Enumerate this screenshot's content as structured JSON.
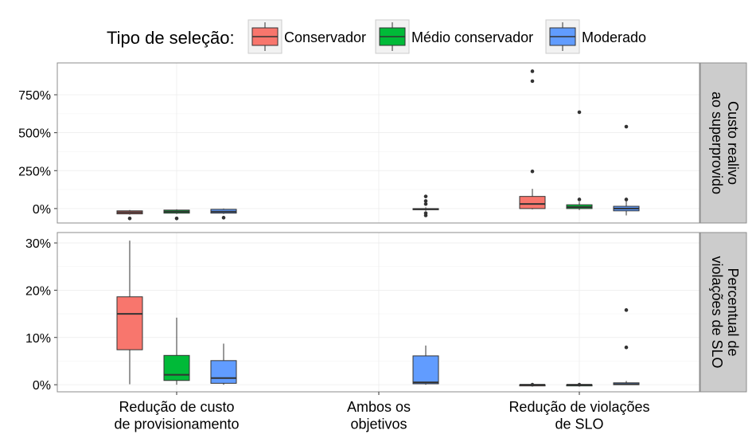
{
  "chart_data": {
    "type": "box",
    "legend": {
      "title": "Tipo de seleção:",
      "position": "top",
      "entries": [
        {
          "label": "Conservador",
          "color": "#F8766D"
        },
        {
          "label": "Médio conservador",
          "color": "#00BA38"
        },
        {
          "label": "Moderado",
          "color": "#619CFF"
        }
      ]
    },
    "categories": [
      [
        "Redução de custo",
        "de provisionamento"
      ],
      [
        "Ambos os",
        "objetivos"
      ],
      [
        "Redução de violações",
        "de SLO"
      ]
    ],
    "grid": true,
    "panels": [
      {
        "strip": [
          "Custo realivo",
          "ao superprovido"
        ],
        "ylim": [
          -95,
          960
        ],
        "yticks": [
          0,
          250,
          500,
          750
        ],
        "ytick_labels": [
          "0%",
          "250%",
          "500%",
          "750%"
        ],
        "boxes": [
          {
            "category": 0,
            "series": 0,
            "q1": -35,
            "median": -25,
            "q3": -15,
            "whisker_low": -40,
            "whisker_high": -10,
            "outliers": [
              -65
            ]
          },
          {
            "category": 0,
            "series": 1,
            "q1": -30,
            "median": -20,
            "q3": -10,
            "whisker_low": -35,
            "whisker_high": -5,
            "outliers": [
              -65
            ]
          },
          {
            "category": 0,
            "series": 2,
            "q1": -30,
            "median": -20,
            "q3": -5,
            "whisker_low": -35,
            "whisker_high": 0,
            "outliers": [
              -60
            ]
          },
          {
            "category": 1,
            "series": 2,
            "q1": -8,
            "median": -3,
            "q3": 0,
            "whisker_low": -15,
            "whisker_high": 8,
            "outliers": [
              80,
              50,
              30,
              -30,
              -45
            ]
          },
          {
            "category": 2,
            "series": 0,
            "q1": 0,
            "median": 30,
            "q3": 80,
            "whisker_low": -5,
            "whisker_high": 130,
            "outliers": [
              245,
              840,
              905
            ]
          },
          {
            "category": 2,
            "series": 1,
            "q1": 0,
            "median": 10,
            "q3": 25,
            "whisker_low": -10,
            "whisker_high": 45,
            "outliers": [
              60,
              635
            ]
          },
          {
            "category": 2,
            "series": 2,
            "q1": -15,
            "median": 0,
            "q3": 15,
            "whisker_low": -45,
            "whisker_high": 55,
            "outliers": [
              60,
              540
            ]
          }
        ]
      },
      {
        "strip": [
          "Percentual de",
          "violações de SLO"
        ],
        "ylim": [
          -1.5,
          32.2
        ],
        "yticks": [
          0,
          10,
          20,
          30
        ],
        "ytick_labels": [
          "0%",
          "10%",
          "20%",
          "30%"
        ],
        "boxes": [
          {
            "category": 0,
            "series": 0,
            "q1": 7.4,
            "median": 15.0,
            "q3": 18.6,
            "whisker_low": 0.1,
            "whisker_high": 30.5,
            "outliers": []
          },
          {
            "category": 0,
            "series": 1,
            "q1": 0.9,
            "median": 2.1,
            "q3": 6.2,
            "whisker_low": 0.0,
            "whisker_high": 14.2,
            "outliers": []
          },
          {
            "category": 0,
            "series": 2,
            "q1": 0.3,
            "median": 1.4,
            "q3": 5.1,
            "whisker_low": 0.0,
            "whisker_high": 8.7,
            "outliers": []
          },
          {
            "category": 1,
            "series": 2,
            "q1": 0.2,
            "median": 0.5,
            "q3": 6.1,
            "whisker_low": 0.0,
            "whisker_high": 8.3,
            "outliers": []
          },
          {
            "category": 2,
            "series": 0,
            "q1": 0.0,
            "median": 0.0,
            "q3": 0.0,
            "whisker_low": 0.0,
            "whisker_high": 0.0,
            "outliers": [
              0.0
            ]
          },
          {
            "category": 2,
            "series": 1,
            "q1": 0.0,
            "median": 0.0,
            "q3": 0.0,
            "whisker_low": 0.0,
            "whisker_high": 0.0,
            "outliers": [
              0.0
            ]
          },
          {
            "category": 2,
            "series": 2,
            "q1": 0.0,
            "median": 0.1,
            "q3": 0.4,
            "whisker_low": 0.0,
            "whisker_high": 0.8,
            "outliers": [
              7.9,
              15.8
            ]
          }
        ]
      }
    ]
  }
}
